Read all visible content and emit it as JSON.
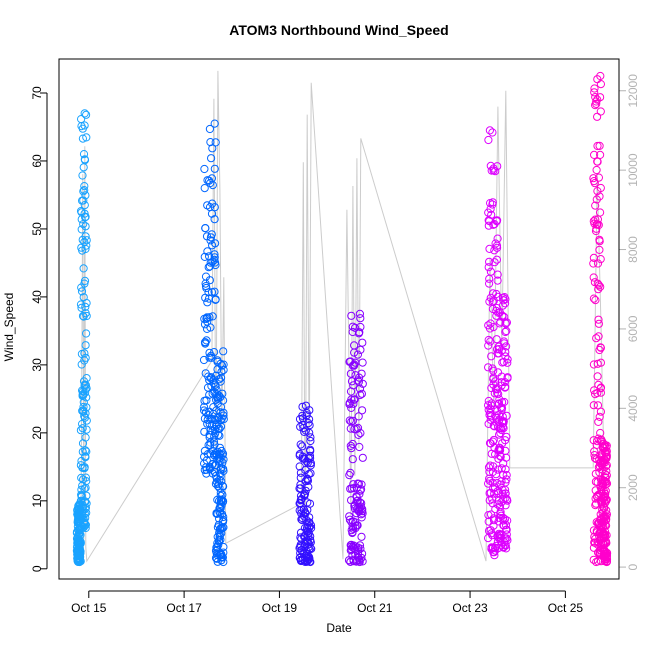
{
  "chart_data": {
    "type": "scatter",
    "title": "ATOM3 Northbound Wind_Speed",
    "xlabel": "Date",
    "ylabel": "Wind_Speed",
    "x_ticks": [
      "Oct 15",
      "Oct 17",
      "Oct 19",
      "Oct 21",
      "Oct 23",
      "Oct 25"
    ],
    "y_ticks": [
      0,
      10,
      20,
      30,
      40,
      50,
      60,
      70
    ],
    "y2_ticks": [
      0,
      2000,
      4000,
      6000,
      8000,
      10000,
      12000
    ],
    "xlim": [
      "2023-10-14 09:00",
      "2023-10-26 03:00"
    ],
    "ylim": [
      -1.5,
      75
    ],
    "y2lim": [
      -300,
      12800
    ],
    "grid": false,
    "legend": "none",
    "series": [
      {
        "color": "#1aa3ff",
        "clusters": [
          {
            "x_start": "2023-10-14 18:00",
            "x_end": "2023-10-14 20:00",
            "y_min": 1,
            "y_max": 9.5
          },
          {
            "x_start": "2023-10-14 20:00",
            "x_end": "2023-10-14 23:00",
            "y_min": 6,
            "y_max": 67
          }
        ]
      },
      {
        "color": "#0066ff",
        "clusters": [
          {
            "x_start": "2023-10-17 10:00",
            "x_end": "2023-10-17 16:00",
            "y_min": 14,
            "y_max": 65.5
          },
          {
            "x_start": "2023-10-17 16:00",
            "x_end": "2023-10-17 20:00",
            "y_min": 1,
            "y_max": 32
          }
        ]
      },
      {
        "color": "#3311ff",
        "clusters": [
          {
            "x_start": "2023-10-19 10:00",
            "x_end": "2023-10-19 16:00",
            "y_min": 1,
            "y_max": 24
          }
        ]
      },
      {
        "color": "#8800ff",
        "clusters": [
          {
            "x_start": "2023-10-20 11:00",
            "x_end": "2023-10-20 18:00",
            "y_min": 1,
            "y_max": 37.5
          }
        ]
      },
      {
        "color": "#dd00ff",
        "clusters": [
          {
            "x_start": "2023-10-23 09:00",
            "x_end": "2023-10-23 14:00",
            "y_min": 2,
            "y_max": 64.5
          },
          {
            "x_start": "2023-10-23 14:00",
            "x_end": "2023-10-23 19:00",
            "y_min": 3,
            "y_max": 40
          }
        ]
      },
      {
        "color": "#ff00cc",
        "clusters": [
          {
            "x_start": "2023-10-25 14:00",
            "x_end": "2023-10-25 18:00",
            "y_min": 1,
            "y_max": 72.5
          },
          {
            "x_start": "2023-10-25 18:00",
            "x_end": "2023-10-25 21:00",
            "y_min": 1,
            "y_max": 19
          }
        ]
      }
    ],
    "secondary_line": {
      "color": "#cccccc",
      "x": [
        "2023-10-14 20:00",
        "2023-10-14 21:00",
        "2023-10-14 21:30",
        "2023-10-14 22:00",
        "2023-10-14 22:30",
        "2023-10-14 23:00",
        "2023-10-17 14:00",
        "2023-10-17 15:00",
        "2023-10-17 16:00",
        "2023-10-17 17:00",
        "2023-10-17 18:00",
        "2023-10-17 19:00",
        "2023-10-17 20:00",
        "2023-10-17 21:00",
        "2023-10-19 11:00",
        "2023-10-19 12:00",
        "2023-10-19 13:00",
        "2023-10-19 14:00",
        "2023-10-19 15:00",
        "2023-10-19 16:00",
        "2023-10-20 08:00",
        "2023-10-20 10:00",
        "2023-10-20 12:00",
        "2023-10-20 13:00",
        "2023-10-20 14:00",
        "2023-10-20 15:00",
        "2023-10-20 16:00",
        "2023-10-20 17:00",
        "2023-10-23 08:00",
        "2023-10-23 10:00",
        "2023-10-23 12:00",
        "2023-10-23 14:00",
        "2023-10-23 16:00",
        "2023-10-23 18:00",
        "2023-10-23 20:00",
        "2023-10-25 14:00",
        "2023-10-25 16:00",
        "2023-10-25 18:00",
        "2023-10-25 20:00"
      ],
      "y": [
        100,
        9900,
        700,
        10600,
        500,
        150,
        5200,
        11800,
        2400,
        12500,
        9500,
        3500,
        7300,
        600,
        1600,
        10200,
        300,
        11400,
        2500,
        12200,
        200,
        9000,
        1300,
        9600,
        2300,
        10300,
        3000,
        10800,
        150,
        7800,
        3900,
        11600,
        5500,
        12000,
        2500,
        2500,
        9900,
        6000,
        1200
      ]
    }
  }
}
